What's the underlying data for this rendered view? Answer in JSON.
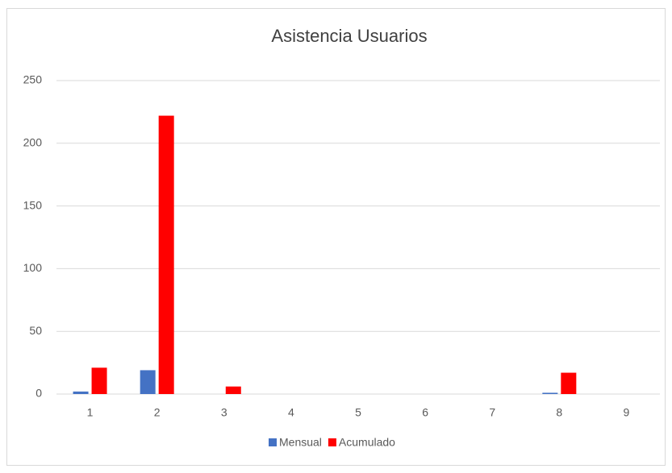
{
  "chart_data": {
    "type": "bar",
    "title": "Asistencia Usuarios",
    "categories": [
      "1",
      "2",
      "3",
      "4",
      "5",
      "6",
      "7",
      "8",
      "9"
    ],
    "series": [
      {
        "name": "Mensual",
        "color": "#4472c4",
        "values": [
          2,
          19,
          0,
          0,
          0,
          0,
          0,
          1,
          0
        ]
      },
      {
        "name": "Acumulado",
        "color": "#ff0000",
        "values": [
          21,
          222,
          6,
          0,
          0,
          0,
          0,
          17,
          0
        ]
      }
    ],
    "ylim": [
      0,
      250
    ],
    "yticks": [
      0,
      50,
      100,
      150,
      200,
      250
    ],
    "grid": true,
    "legend": "bottom"
  }
}
